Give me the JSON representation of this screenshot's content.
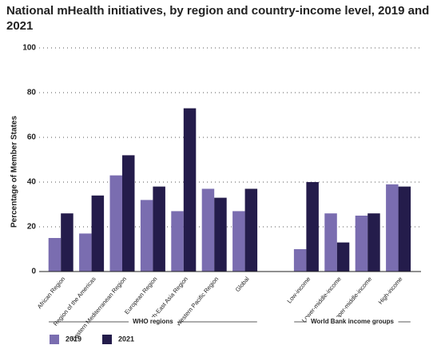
{
  "chart_data": {
    "type": "bar",
    "title": "National mHealth initiatives, by region and country-income level, 2019 and 2021",
    "y_label": "Percentage of Member States",
    "groups": [
      {
        "label": "WHO regions",
        "categories": [
          "African Region",
          "Region of the Americas",
          "Eastern Mediterranean Region",
          "European Region",
          "South-East Asia Region",
          "Western Pacific Region",
          "Global"
        ]
      },
      {
        "label": "World Bank income groups",
        "categories": [
          "Low-income",
          "Lower-middle-income",
          "Upper-middle-income",
          "High-income"
        ]
      }
    ],
    "series": [
      {
        "name": "2019",
        "color": "#7a6db0",
        "values": [
          15,
          17,
          43,
          32,
          27,
          37,
          27,
          10,
          26,
          25,
          39
        ]
      },
      {
        "name": "2021",
        "color": "#241c4b",
        "values": [
          26,
          34,
          52,
          38,
          73,
          33,
          37,
          40,
          13,
          26,
          38
        ]
      }
    ],
    "ylim": [
      0,
      100
    ],
    "yticks": [
      0,
      20,
      40,
      60,
      80,
      100
    ],
    "grid": true
  }
}
